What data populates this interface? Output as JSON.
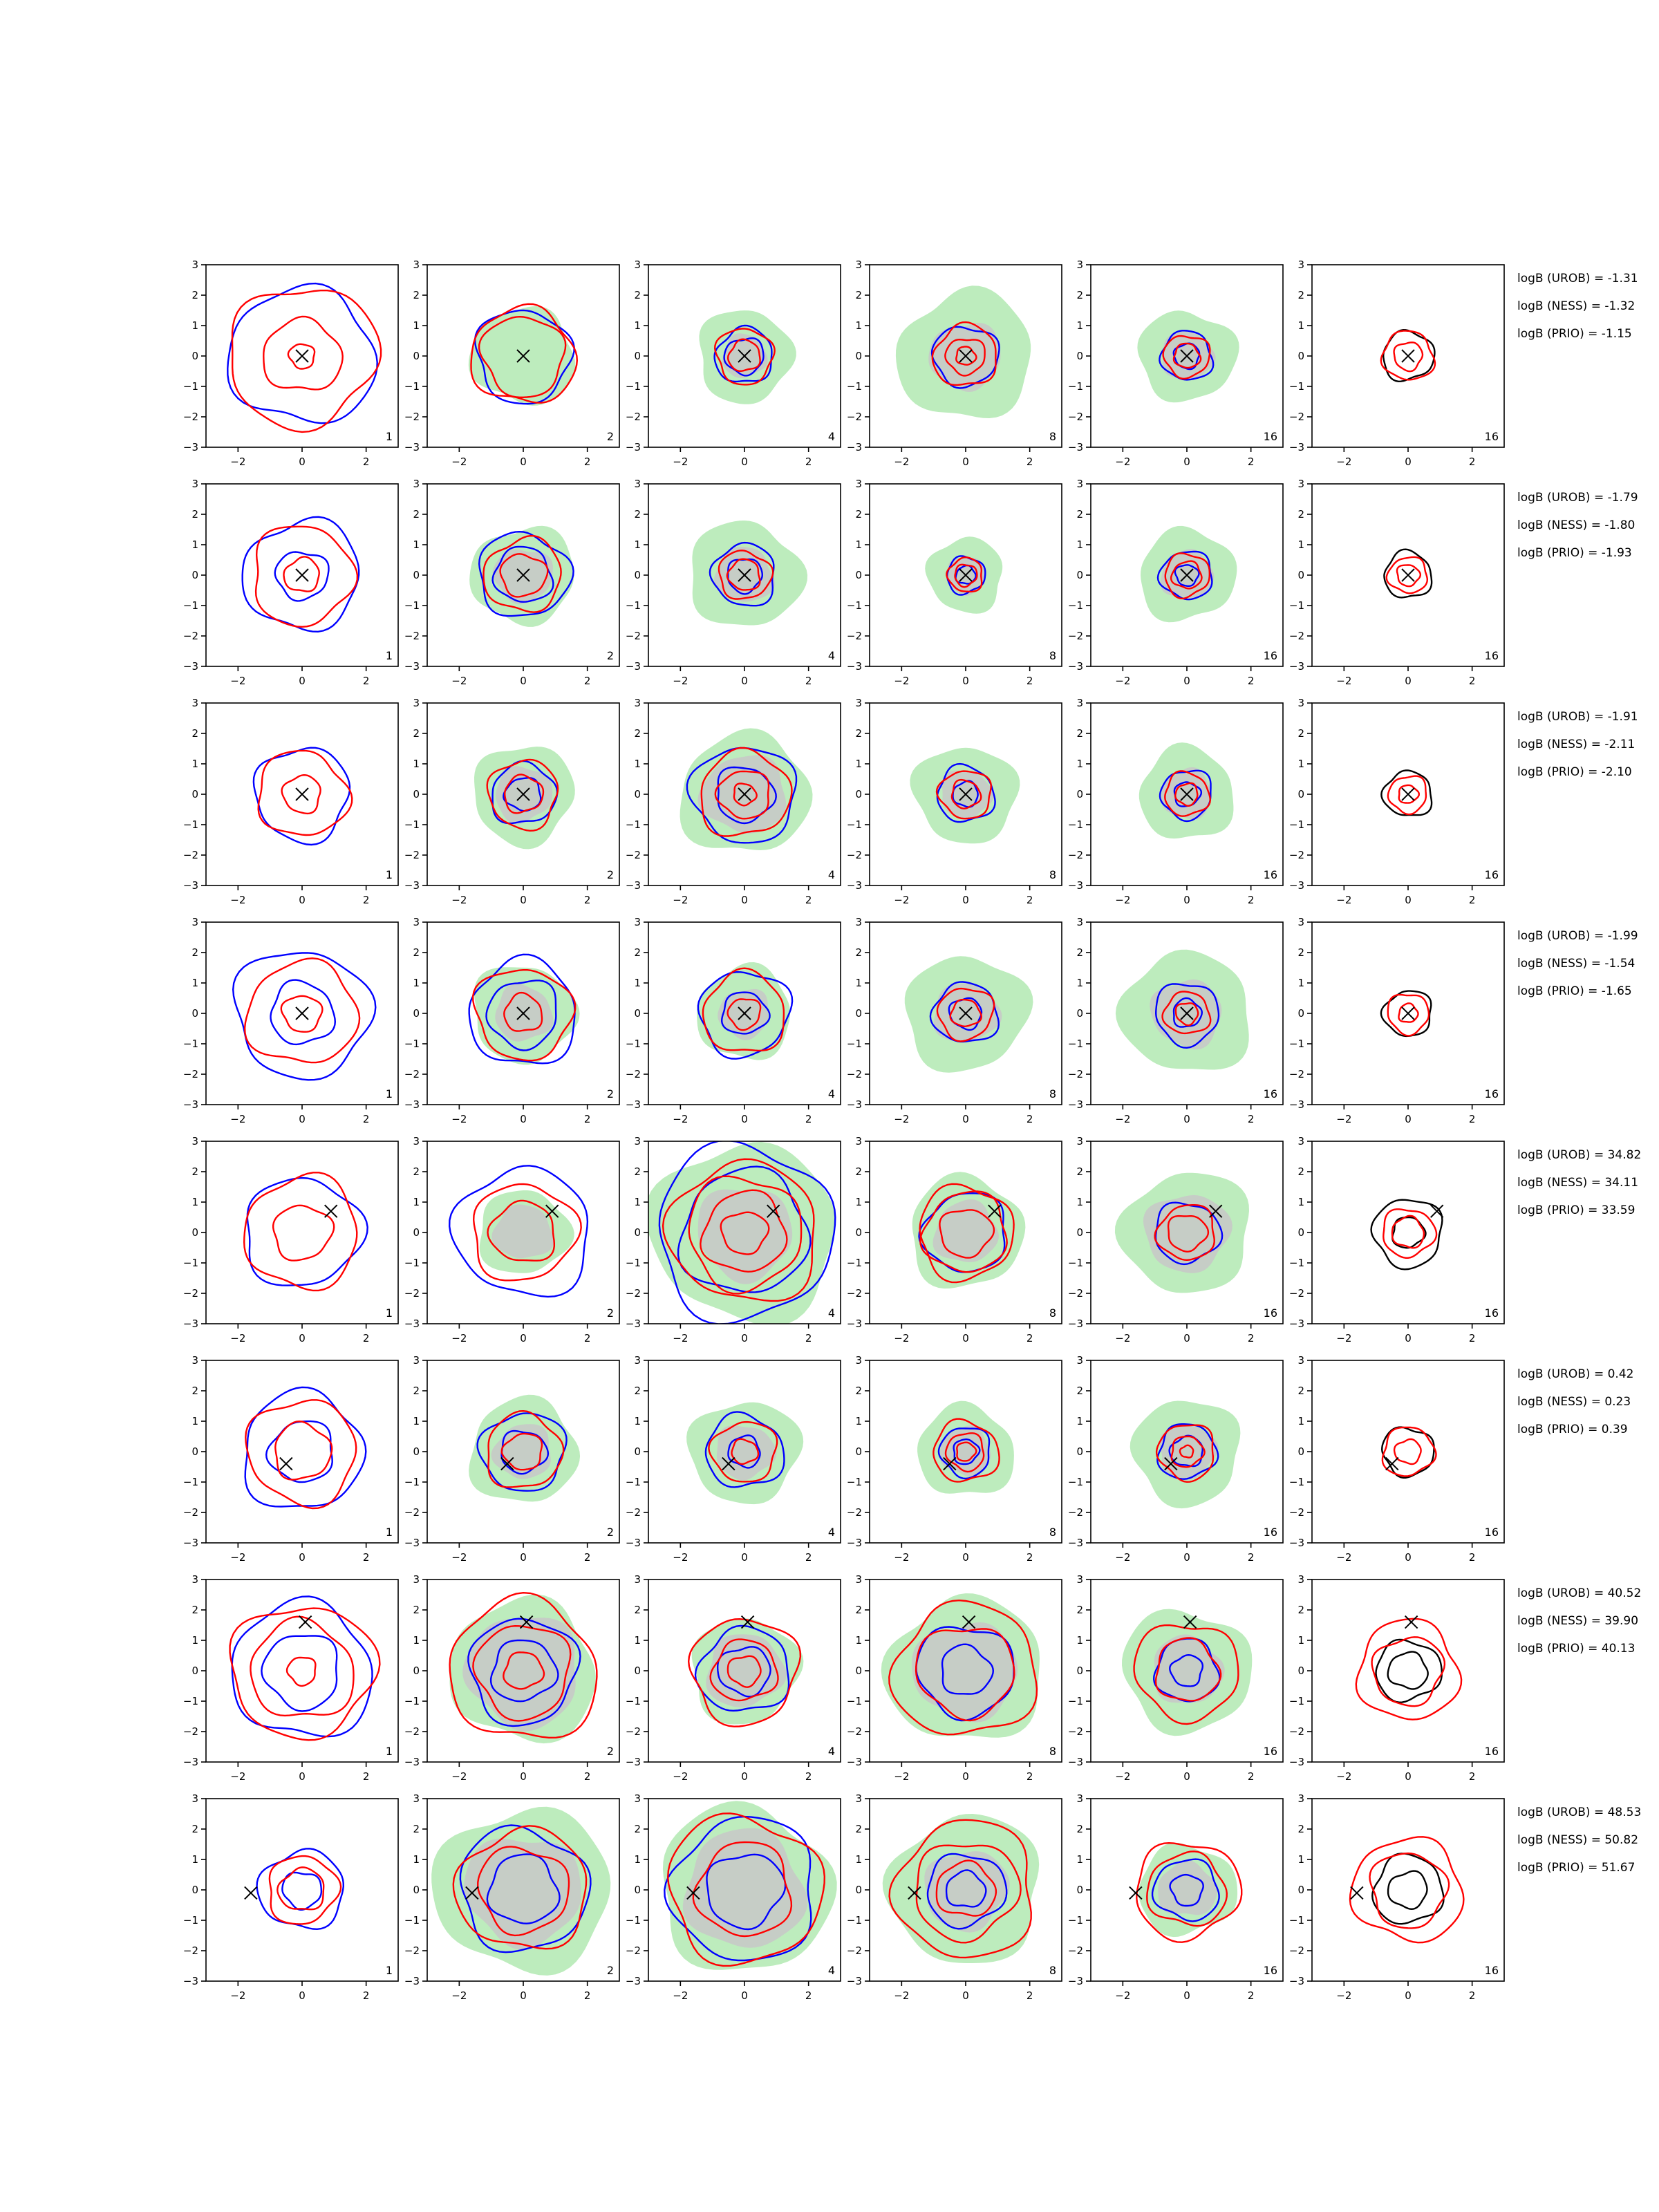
{
  "chart_data": {
    "type": "contour-grid",
    "rows": 8,
    "cols": 6,
    "axis": {
      "xlim": [
        -3,
        3
      ],
      "ylim": [
        -3,
        3
      ],
      "xticks": [
        -2,
        0,
        2
      ],
      "yticks": [
        3,
        2,
        1,
        0,
        -1,
        -2,
        -3
      ],
      "xtick_labels": [
        "−2",
        "0",
        "2"
      ],
      "ytick_labels": [
        "3",
        "2",
        "1",
        "0",
        "−1",
        "−2",
        "−3"
      ]
    },
    "column_sample_labels": [
      "1",
      "2",
      "4",
      "8",
      "16",
      "16"
    ],
    "series_colors": {
      "red": "#ff0000",
      "blue": "#0000ff",
      "black": "#000000",
      "green_fill": "#bdecbd",
      "grey_fill": "#c8c8c8"
    },
    "rows_data": [
      {
        "marker": [
          0,
          0
        ],
        "annotations": [
          "logB (UROB) = -1.31",
          "logB (NESS) = -1.32",
          "logB (PRIO) = -1.15"
        ],
        "panels": [
          {
            "label": "1",
            "green": null,
            "grey": null,
            "blue": [
              2.25
            ],
            "red": [
              2.3,
              1.2,
              0.4
            ],
            "black": []
          },
          {
            "label": "2",
            "green": 1.6,
            "grey": null,
            "blue": [
              1.5
            ],
            "red": [
              1.6,
              1.3
            ],
            "black": []
          },
          {
            "label": "4",
            "green": 1.5,
            "grey": 0.7,
            "blue": [
              0.9,
              0.6
            ],
            "red": [
              0.9,
              0.5
            ],
            "black": []
          },
          {
            "label": "8",
            "green": 2.1,
            "grey": 1.1,
            "blue": [
              1.0
            ],
            "red": [
              1.0,
              0.6,
              0.3
            ],
            "black": []
          },
          {
            "label": "16",
            "green": 1.5,
            "grey": 0.8,
            "blue": [
              0.8,
              0.4
            ],
            "red": [
              0.7,
              0.4
            ],
            "black": []
          },
          {
            "label": "16",
            "green": null,
            "grey": null,
            "blue": [],
            "red": [
              0.8,
              0.45
            ],
            "black": [
              0.8
            ]
          }
        ]
      },
      {
        "marker": [
          0,
          0
        ],
        "annotations": [
          "logB (UROB) = -1.79",
          "logB (NESS) = -1.80",
          "logB (PRIO) = -1.93"
        ],
        "panels": [
          {
            "label": "1",
            "green": null,
            "grey": null,
            "blue": [
              1.8,
              0.8
            ],
            "red": [
              1.6,
              0.55
            ],
            "black": []
          },
          {
            "label": "2",
            "green": 1.6,
            "grey": 0.9,
            "blue": [
              1.4,
              0.9
            ],
            "red": [
              1.2,
              0.7
            ],
            "black": []
          },
          {
            "label": "4",
            "green": 1.75,
            "grey": 0.9,
            "blue": [
              1.0,
              0.55
            ],
            "red": [
              0.8,
              0.5
            ],
            "black": []
          },
          {
            "label": "8",
            "green": 1.2,
            "grey": 0.6,
            "blue": [
              0.6,
              0.3
            ],
            "red": [
              0.55,
              0.35
            ],
            "black": []
          },
          {
            "label": "16",
            "green": 1.5,
            "grey": 0.8,
            "blue": [
              0.8,
              0.35
            ],
            "red": [
              0.7,
              0.45
            ],
            "black": []
          },
          {
            "label": "16",
            "green": null,
            "grey": null,
            "blue": [],
            "red": [
              0.6,
              0.35
            ],
            "black": [
              0.75
            ]
          }
        ]
      },
      {
        "marker": [
          0,
          0
        ],
        "annotations": [
          "logB (UROB) = -1.91",
          "logB (NESS) = -2.11",
          "logB (PRIO) = -2.10"
        ],
        "panels": [
          {
            "label": "1",
            "green": null,
            "grey": null,
            "blue": [
              1.5
            ],
            "red": [
              1.4,
              0.6
            ],
            "black": []
          },
          {
            "label": "2",
            "green": 1.6,
            "grey": 0.9,
            "blue": [
              1.0,
              0.55
            ],
            "red": [
              1.1,
              0.6
            ],
            "black": []
          },
          {
            "label": "4",
            "green": 2.0,
            "grey": 1.3,
            "blue": [
              1.6,
              0.9
            ],
            "red": [
              1.4,
              0.8,
              0.35
            ],
            "black": []
          },
          {
            "label": "8",
            "green": 1.6,
            "grey": 0.8,
            "blue": [
              0.9,
              0.4
            ],
            "red": [
              0.8,
              0.45
            ],
            "black": []
          },
          {
            "label": "16",
            "green": 1.5,
            "grey": 0.8,
            "blue": [
              0.8,
              0.4
            ],
            "red": [
              0.7,
              0.35
            ],
            "black": []
          },
          {
            "label": "16",
            "green": null,
            "grey": null,
            "blue": [],
            "red": [
              0.6,
              0.3
            ],
            "black": [
              0.75
            ]
          }
        ]
      },
      {
        "marker": [
          0,
          0
        ],
        "annotations": [
          "logB (UROB) = -1.99",
          "logB (NESS) = -1.54",
          "logB (PRIO) = -1.65"
        ],
        "panels": [
          {
            "label": "1",
            "green": null,
            "grey": null,
            "blue": [
              2.1,
              1.0
            ],
            "red": [
              1.7,
              0.6
            ],
            "black": []
          },
          {
            "label": "2",
            "green": 1.6,
            "grey": 0.9,
            "blue": [
              1.7,
              1.1
            ],
            "red": [
              1.5,
              0.6
            ],
            "black": []
          },
          {
            "label": "4",
            "green": 1.5,
            "grey": 0.8,
            "blue": [
              1.4,
              0.7
            ],
            "red": [
              1.3,
              0.5
            ],
            "black": []
          },
          {
            "label": "8",
            "green": 1.9,
            "grey": 1.0,
            "blue": [
              1.0,
              0.5
            ],
            "red": [
              0.85,
              0.45
            ],
            "black": []
          },
          {
            "label": "16",
            "green": 2.0,
            "grey": 1.1,
            "blue": [
              1.0,
              0.45
            ],
            "red": [
              0.7,
              0.35
            ],
            "black": []
          },
          {
            "label": "16",
            "green": null,
            "grey": null,
            "blue": [],
            "red": [
              0.65,
              0.3
            ],
            "black": [
              0.75
            ]
          }
        ]
      },
      {
        "marker": [
          0.9,
          0.7
        ],
        "annotations": [
          "logB (UROB) = 34.82",
          "logB (NESS) = 34.11",
          "logB (PRIO) = 33.59"
        ],
        "panels": [
          {
            "label": "1",
            "green": null,
            "grey": null,
            "blue": [
              1.8
            ],
            "red": [
              1.8,
              0.9
            ],
            "black": []
          },
          {
            "label": "2",
            "green": 1.4,
            "grey": 0.9,
            "blue": [
              2.1
            ],
            "red": [
              1.6,
              1.0
            ],
            "black": []
          },
          {
            "label": "4",
            "green": 2.9,
            "grey": 1.5,
            "blue": [
              2.8,
              2.0
            ],
            "red": [
              2.3,
              1.8,
              1.3,
              0.7
            ],
            "black": []
          },
          {
            "label": "8",
            "green": 1.8,
            "grey": 1.0,
            "blue": [
              1.3
            ],
            "red": [
              1.5,
              1.3,
              0.8
            ],
            "black": []
          },
          {
            "label": "16",
            "green": 2.0,
            "grey": 1.3,
            "blue": [
              1.0
            ],
            "red": [
              0.9,
              0.6
            ],
            "black": []
          },
          {
            "label": "16",
            "green": null,
            "grey": null,
            "blue": [],
            "red": [
              0.8,
              0.5
            ],
            "black": [
              1.1,
              0.5
            ]
          }
        ]
      },
      {
        "marker": [
          -0.5,
          -0.4
        ],
        "annotations": [
          "logB (UROB) = 0.42",
          "logB (NESS) = 0.23",
          "logB (PRIO) = 0.39"
        ],
        "panels": [
          {
            "label": "1",
            "green": null,
            "grey": null,
            "blue": [
              1.9,
              1.0
            ],
            "red": [
              1.7,
              0.9
            ],
            "black": []
          },
          {
            "label": "2",
            "green": 1.7,
            "grey": 0.9,
            "blue": [
              1.3,
              0.7
            ],
            "red": [
              1.2,
              0.6
            ],
            "black": []
          },
          {
            "label": "4",
            "green": 1.7,
            "grey": 0.9,
            "blue": [
              1.2,
              0.5
            ],
            "red": [
              1.0,
              0.4
            ],
            "black": []
          },
          {
            "label": "8",
            "green": 1.5,
            "grey": 0.8,
            "blue": [
              0.8,
              0.4
            ],
            "red": [
              1.0,
              0.6,
              0.3
            ],
            "black": []
          },
          {
            "label": "16",
            "green": 1.7,
            "grey": 0.9,
            "blue": [
              0.9,
              0.5
            ],
            "red": [
              0.9,
              0.5,
              0.2
            ],
            "black": []
          },
          {
            "label": "16",
            "green": null,
            "grey": null,
            "blue": [],
            "red": [
              0.8,
              0.4
            ],
            "black": [
              0.8
            ]
          }
        ]
      },
      {
        "marker": [
          0.1,
          1.6
        ],
        "annotations": [
          "logB (UROB) = 40.52",
          "logB (NESS) = 39.90",
          "logB (PRIO) = 40.13"
        ],
        "panels": [
          {
            "label": "1",
            "green": null,
            "grey": null,
            "blue": [
              2.2,
              1.2
            ],
            "red": [
              2.2,
              1.6,
              0.45
            ],
            "black": []
          },
          {
            "label": "2",
            "green": 2.3,
            "grey": 1.8,
            "blue": [
              1.7,
              1.0
            ],
            "red": [
              2.3,
              1.5,
              0.6
            ],
            "black": []
          },
          {
            "label": "4",
            "green": 1.7,
            "grey": 1.2,
            "blue": [
              1.4,
              0.8
            ],
            "red": [
              1.7,
              1.0,
              0.5
            ],
            "black": []
          },
          {
            "label": "8",
            "green": 2.4,
            "grey": 1.6,
            "blue": [
              1.5,
              0.8
            ],
            "red": [
              2.2,
              1.5
            ],
            "black": []
          },
          {
            "label": "16",
            "green": 2.0,
            "grey": 1.1,
            "blue": [
              1.0,
              0.5
            ],
            "red": [
              1.6,
              1.0
            ],
            "black": []
          },
          {
            "label": "16",
            "green": null,
            "grey": null,
            "blue": [],
            "red": [
              1.6,
              1.1
            ],
            "black": [
              1.0,
              0.6
            ]
          }
        ]
      },
      {
        "marker": [
          -1.6,
          -0.1
        ],
        "annotations": [
          "logB (UROB) = 48.53",
          "logB (NESS) = 50.82",
          "logB (PRIO) = 51.67"
        ],
        "panels": [
          {
            "label": "1",
            "green": null,
            "grey": null,
            "blue": [
              1.3,
              0.6
            ],
            "red": [
              1.1,
              0.7
            ],
            "black": []
          },
          {
            "label": "2",
            "green": 2.7,
            "grey": 1.8,
            "blue": [
              2.0,
              1.1
            ],
            "red": [
              2.0,
              1.4
            ],
            "black": []
          },
          {
            "label": "4",
            "green": 2.7,
            "grey": 1.9,
            "blue": [
              2.3,
              1.2
            ],
            "red": [
              2.4,
              1.5
            ],
            "black": []
          },
          {
            "label": "8",
            "green": 2.4,
            "grey": 1.3,
            "blue": [
              1.2,
              0.6
            ],
            "red": [
              2.2,
              1.6,
              0.9
            ],
            "black": []
          },
          {
            "label": "16",
            "green": 1.5,
            "grey": 0.9,
            "blue": [
              1.0,
              0.5
            ],
            "red": [
              1.6,
              1.2
            ],
            "black": []
          },
          {
            "label": "16",
            "green": null,
            "grey": null,
            "blue": [],
            "red": [
              1.7,
              1.2
            ],
            "black": [
              1.1,
              0.6
            ]
          }
        ]
      }
    ]
  }
}
